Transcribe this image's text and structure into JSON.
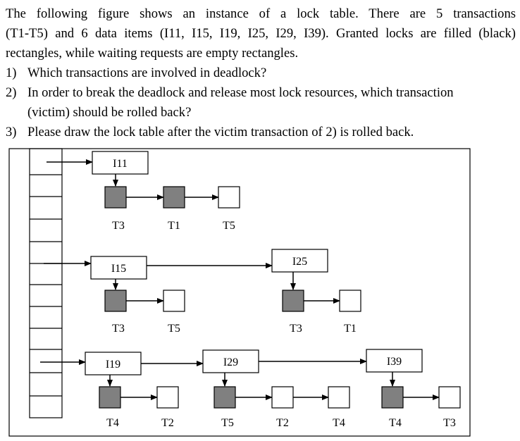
{
  "intro": {
    "line1": "The following figure shows an instance of a lock table. There are 5 transactions",
    "line2": "(T1-T5) and 6 data items (I11, I15, I19, I25, I29, I39). Granted locks are filled (black)",
    "line3": "rectangles, while waiting requests are empty rectangles."
  },
  "questions": [
    {
      "number": "1)",
      "text": "Which transactions are involved in deadlock?"
    },
    {
      "number": "2)",
      "text": "In order to break the deadlock and release most lock resources, which transaction"
    },
    {
      "number": "",
      "text": "(victim) should be rolled back?"
    },
    {
      "number": "3)",
      "text": "Please draw the lock table after the victim transaction of 2) is rolled back."
    }
  ],
  "lock_table": {
    "granted_color": "#808080",
    "waiting_color": "#ffffff",
    "items": [
      {
        "item": "I11",
        "requests": [
          {
            "transaction": "T3",
            "status": "granted"
          },
          {
            "transaction": "T1",
            "status": "granted"
          },
          {
            "transaction": "T5",
            "status": "waiting"
          }
        ]
      },
      {
        "item": "I15",
        "requests": [
          {
            "transaction": "T3",
            "status": "granted"
          },
          {
            "transaction": "T5",
            "status": "waiting"
          }
        ]
      },
      {
        "item": "I25",
        "requests": [
          {
            "transaction": "T3",
            "status": "granted"
          },
          {
            "transaction": "T1",
            "status": "waiting"
          }
        ]
      },
      {
        "item": "I19",
        "requests": [
          {
            "transaction": "T4",
            "status": "granted"
          },
          {
            "transaction": "T2",
            "status": "waiting"
          }
        ]
      },
      {
        "item": "I29",
        "requests": [
          {
            "transaction": "T5",
            "status": "granted"
          },
          {
            "transaction": "T2",
            "status": "waiting"
          },
          {
            "transaction": "T4",
            "status": "waiting"
          }
        ]
      },
      {
        "item": "I39",
        "requests": [
          {
            "transaction": "T4",
            "status": "granted"
          },
          {
            "transaction": "T3",
            "status": "waiting"
          }
        ]
      }
    ]
  }
}
